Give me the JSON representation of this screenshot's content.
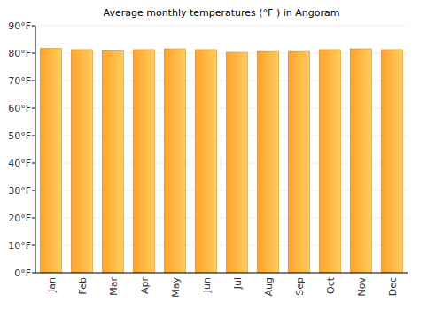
{
  "chart_data": {
    "type": "bar",
    "title": "Average monthly temperatures (°F ) in Angoram",
    "categories": [
      "Jan",
      "Feb",
      "Mar",
      "Apr",
      "May",
      "Jun",
      "Jul",
      "Aug",
      "Sep",
      "Oct",
      "Nov",
      "Dec"
    ],
    "values": [
      81.7,
      81.3,
      80.9,
      81.3,
      81.6,
      81.3,
      80.3,
      80.6,
      80.6,
      81.3,
      81.6,
      81.3
    ],
    "color": "#ffa42b",
    "ylim": [
      0,
      90
    ],
    "yticks": [
      {
        "value": 0,
        "label": "0°F"
      },
      {
        "value": 10,
        "label": "10°F"
      },
      {
        "value": 20,
        "label": "20°F"
      },
      {
        "value": 30,
        "label": "30°F"
      },
      {
        "value": 40,
        "label": "40°F"
      },
      {
        "value": 50,
        "label": "50°F"
      },
      {
        "value": 60,
        "label": "60°F"
      },
      {
        "value": 70,
        "label": "70°F"
      },
      {
        "value": 80,
        "label": "80°F"
      },
      {
        "value": 90,
        "label": "90°F"
      }
    ],
    "grid": true
  }
}
